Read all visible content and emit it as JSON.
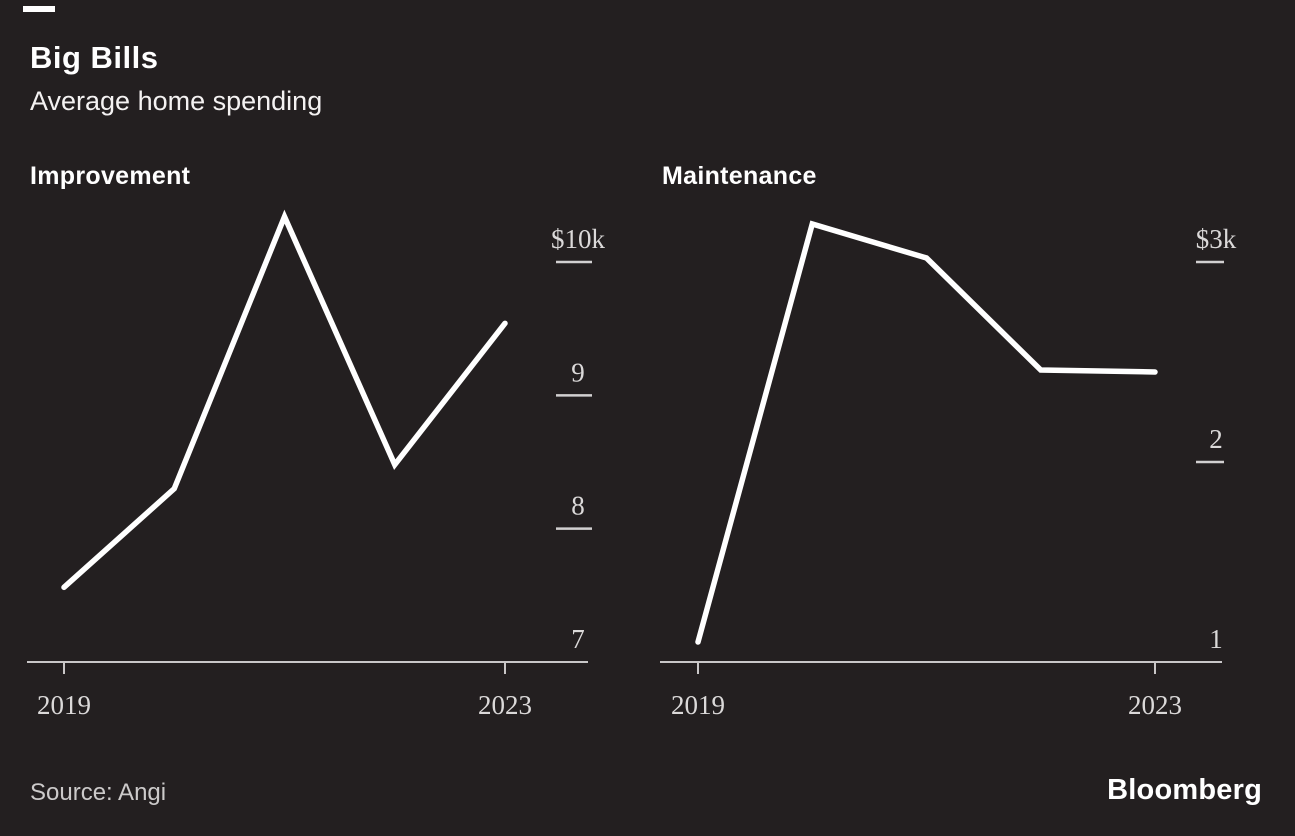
{
  "header": {
    "title": "Big Bills",
    "subtitle": "Average home spending"
  },
  "footer": {
    "source": "Source: Angi",
    "logo": "Bloomberg"
  },
  "colors": {
    "background": "#231f20",
    "series_line": "#ffffff",
    "axis": "#c9c7c8",
    "tick_label": "#dbd9d9",
    "title_text": "#ffffff"
  },
  "chart_data": [
    {
      "type": "line",
      "title": "Improvement",
      "x": [
        2019,
        2020,
        2021,
        2022,
        2023
      ],
      "values": [
        7560,
        8300,
        10340,
        8480,
        9540
      ],
      "unit": "USD per year, thousands",
      "ylim": [
        7000,
        10500
      ],
      "grid": false,
      "legend": "none",
      "y_axis_side": "right",
      "y_ticks": [
        {
          "value": 10000,
          "label": "$10k"
        },
        {
          "value": 9000,
          "label": "9"
        },
        {
          "value": 8000,
          "label": "8"
        },
        {
          "value": 7000,
          "label": "7"
        }
      ],
      "x_ticks": [
        {
          "value": 2019,
          "label": "2019"
        },
        {
          "value": 2023,
          "label": "2023"
        }
      ]
    },
    {
      "type": "line",
      "title": "Maintenance",
      "x": [
        2019,
        2020,
        2021,
        2022,
        2023
      ],
      "values": [
        1100,
        3190,
        3020,
        2460,
        2450
      ],
      "unit": "USD per year, thousands",
      "ylim": [
        1000,
        3350
      ],
      "grid": false,
      "legend": "none",
      "y_axis_side": "right",
      "y_ticks": [
        {
          "value": 3000,
          "label": "$3k"
        },
        {
          "value": 2000,
          "label": "2"
        },
        {
          "value": 1000,
          "label": "1"
        }
      ],
      "x_ticks": [
        {
          "value": 2019,
          "label": "2019"
        },
        {
          "value": 2023,
          "label": "2023"
        }
      ]
    }
  ]
}
